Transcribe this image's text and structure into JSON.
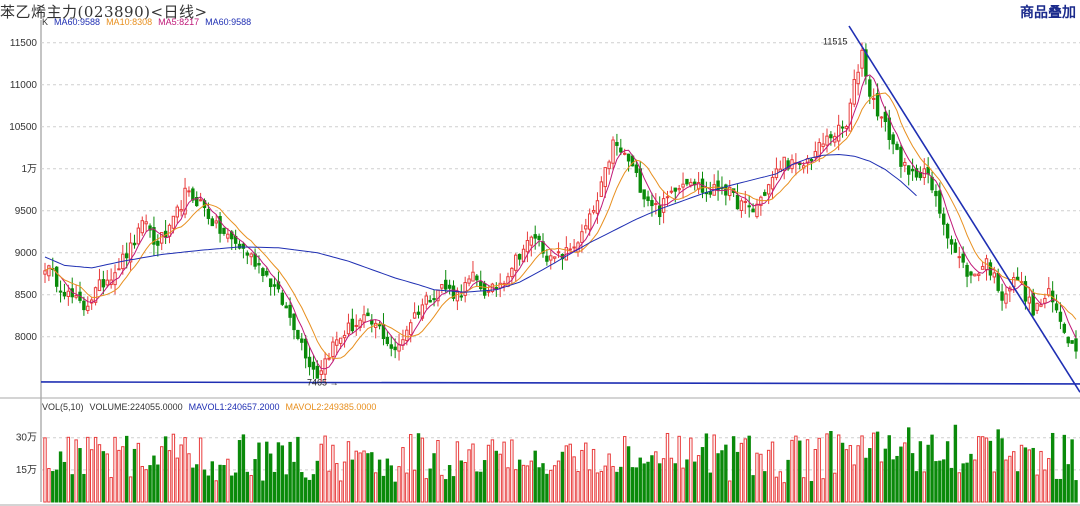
{
  "header": {
    "title": "苯乙烯主力(023890)<日线>",
    "overlay_button": "商品叠加"
  },
  "price_legend": [
    {
      "label": "K",
      "color": "#333333"
    },
    {
      "label": "MA60:9588",
      "color": "#1f2fb3"
    },
    {
      "label": "MA10:8308",
      "color": "#e89020"
    },
    {
      "label": "MA5:8217",
      "color": "#c01878"
    },
    {
      "label": "MA60:9588",
      "color": "#1f2fb3"
    }
  ],
  "volume_legend": [
    {
      "label": "VOL(5,10)",
      "color": "#333333"
    },
    {
      "label": "VOLUME:224055.0000",
      "color": "#333333"
    },
    {
      "label": "MAVOL1:240657.2000",
      "color": "#1f2fb3"
    },
    {
      "label": "MAVOL2:249385.0000",
      "color": "#e89020"
    }
  ],
  "price_axis": {
    "ticks": [
      {
        "value": 11500,
        "label": "11500"
      },
      {
        "value": 11000,
        "label": "11000"
      },
      {
        "value": 10500,
        "label": "10500"
      },
      {
        "value": 10000,
        "label": "1万"
      },
      {
        "value": 9500,
        "label": "9500"
      },
      {
        "value": 9000,
        "label": "9000"
      },
      {
        "value": 8500,
        "label": "8500"
      },
      {
        "value": 8000,
        "label": "8000"
      }
    ]
  },
  "volume_axis": {
    "ticks": [
      {
        "value": 300000,
        "label": "30万"
      },
      {
        "value": 150000,
        "label": "15万"
      }
    ]
  },
  "annotations": {
    "high_label": "11515",
    "low_label": "7465 →"
  },
  "colors": {
    "up": "#e83c3c",
    "down": "#0a8a0a",
    "ma5": "#c01878",
    "ma10": "#e89020",
    "ma60": "#1f2fb3",
    "trendline": "#1f2fb3"
  },
  "chart_data": {
    "type": "candlestick",
    "price_range": [
      7390,
      11700
    ],
    "volume_range": [
      0,
      420000
    ],
    "high": 11515,
    "low": 7465,
    "ma60_path": [
      [
        0,
        8950
      ],
      [
        5,
        8850
      ],
      [
        12,
        8820
      ],
      [
        20,
        8900
      ],
      [
        30,
        8980
      ],
      [
        40,
        9030
      ],
      [
        50,
        9070
      ],
      [
        60,
        9060
      ],
      [
        70,
        9000
      ],
      [
        78,
        8900
      ],
      [
        84,
        8800
      ],
      [
        90,
        8700
      ],
      [
        96,
        8620
      ],
      [
        100,
        8560
      ],
      [
        108,
        8530
      ],
      [
        116,
        8560
      ],
      [
        122,
        8650
      ],
      [
        128,
        8800
      ],
      [
        134,
        8960
      ],
      [
        140,
        9120
      ],
      [
        146,
        9260
      ],
      [
        152,
        9400
      ],
      [
        158,
        9520
      ],
      [
        164,
        9620
      ],
      [
        170,
        9720
      ],
      [
        176,
        9800
      ],
      [
        182,
        9870
      ],
      [
        188,
        9940
      ],
      [
        192,
        10050
      ],
      [
        196,
        10120
      ],
      [
        200,
        10160
      ],
      [
        204,
        10170
      ],
      [
        208,
        10150
      ],
      [
        212,
        10090
      ],
      [
        216,
        9990
      ],
      [
        220,
        9850
      ],
      [
        224,
        9680
      ]
    ],
    "closes_path": [
      [
        0,
        8850
      ],
      [
        6,
        8500
      ],
      [
        10,
        8350
      ],
      [
        14,
        8600
      ],
      [
        18,
        8800
      ],
      [
        22,
        9050
      ],
      [
        26,
        9400
      ],
      [
        28,
        9100
      ],
      [
        32,
        9250
      ],
      [
        36,
        9700
      ],
      [
        40,
        9600
      ],
      [
        44,
        9300
      ],
      [
        48,
        9150
      ],
      [
        52,
        9000
      ],
      [
        56,
        8800
      ],
      [
        60,
        8500
      ],
      [
        64,
        8150
      ],
      [
        68,
        7700
      ],
      [
        70,
        7550
      ],
      [
        74,
        7900
      ],
      [
        78,
        8100
      ],
      [
        82,
        8200
      ],
      [
        86,
        8100
      ],
      [
        90,
        7800
      ],
      [
        94,
        8200
      ],
      [
        98,
        8450
      ],
      [
        102,
        8600
      ],
      [
        106,
        8500
      ],
      [
        110,
        8700
      ],
      [
        114,
        8500
      ],
      [
        118,
        8700
      ],
      [
        122,
        9000
      ],
      [
        126,
        9200
      ],
      [
        130,
        8900
      ],
      [
        134,
        9000
      ],
      [
        138,
        9200
      ],
      [
        142,
        9600
      ],
      [
        146,
        10300
      ],
      [
        150,
        10100
      ],
      [
        154,
        9700
      ],
      [
        158,
        9500
      ],
      [
        162,
        9800
      ],
      [
        166,
        9900
      ],
      [
        170,
        9700
      ],
      [
        174,
        9800
      ],
      [
        178,
        9600
      ],
      [
        182,
        9500
      ],
      [
        186,
        9800
      ],
      [
        190,
        10100
      ],
      [
        194,
        10000
      ],
      [
        198,
        10200
      ],
      [
        202,
        10400
      ],
      [
        206,
        10500
      ],
      [
        208,
        11000
      ],
      [
        210,
        11400
      ],
      [
        212,
        10900
      ],
      [
        214,
        10700
      ],
      [
        218,
        10300
      ],
      [
        222,
        9900
      ],
      [
        226,
        10000
      ],
      [
        230,
        9500
      ],
      [
        234,
        9000
      ],
      [
        238,
        8700
      ],
      [
        242,
        8900
      ],
      [
        246,
        8500
      ],
      [
        250,
        8700
      ],
      [
        254,
        8300
      ],
      [
        258,
        8500
      ],
      [
        262,
        8100
      ],
      [
        264,
        7900
      ]
    ]
  }
}
